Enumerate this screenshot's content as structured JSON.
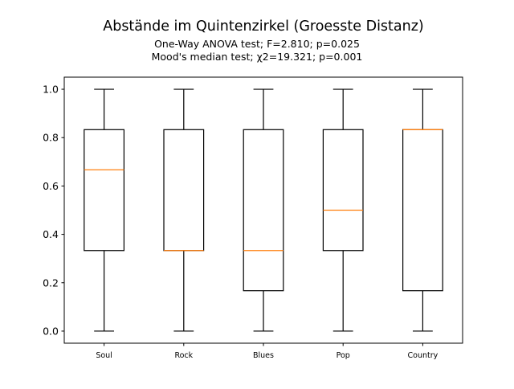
{
  "chart_data": {
    "type": "box",
    "title": "Abstände im Quintenzirkel (Groesste Distanz)",
    "subtitle_lines": [
      "One-Way ANOVA test; F=2.810; p=0.025",
      "Mood's median test; χ2=19.321; p=0.001"
    ],
    "xlabel": "",
    "ylabel": "",
    "ylim": [
      -0.05,
      1.05
    ],
    "yticks": [
      0.0,
      0.2,
      0.4,
      0.6,
      0.8,
      1.0
    ],
    "ytick_labels": [
      "0.0",
      "0.2",
      "0.4",
      "0.6",
      "0.8",
      "1.0"
    ],
    "grid": false,
    "categories": [
      "Soul",
      "Rock",
      "Blues",
      "Pop",
      "Country"
    ],
    "boxes": [
      {
        "category": "Soul",
        "whisker_low": 0.0,
        "q1": 0.333,
        "median": 0.667,
        "q3": 0.833,
        "whisker_high": 1.0
      },
      {
        "category": "Rock",
        "whisker_low": 0.0,
        "q1": 0.333,
        "median": 0.333,
        "q3": 0.833,
        "whisker_high": 1.0
      },
      {
        "category": "Blues",
        "whisker_low": 0.0,
        "q1": 0.167,
        "median": 0.333,
        "q3": 0.833,
        "whisker_high": 1.0
      },
      {
        "category": "Pop",
        "whisker_low": 0.0,
        "q1": 0.333,
        "median": 0.5,
        "q3": 0.833,
        "whisker_high": 1.0
      },
      {
        "category": "Country",
        "whisker_low": 0.0,
        "q1": 0.167,
        "median": 0.833,
        "q3": 0.833,
        "whisker_high": 1.0
      }
    ],
    "colors": {
      "box_edge": "#000000",
      "median": "#ff7f0e",
      "axes": "#000000",
      "background": "#ffffff"
    }
  }
}
